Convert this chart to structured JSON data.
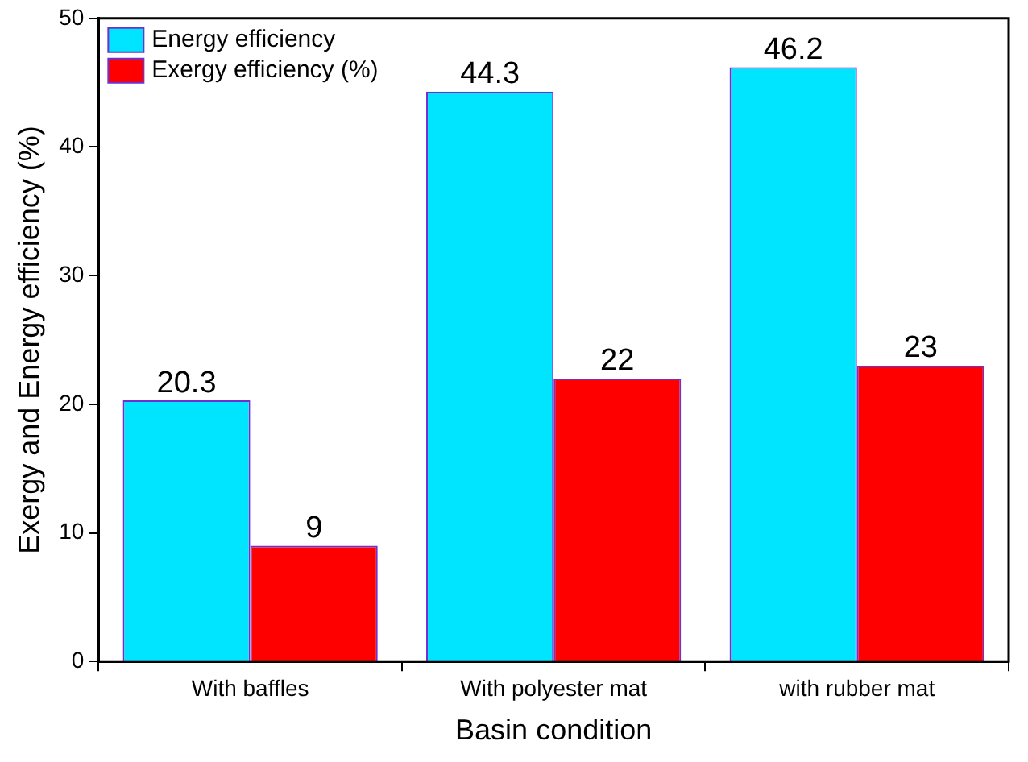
{
  "chart_data": {
    "type": "bar",
    "xlabel": "Basin condition",
    "ylabel": "Exergy and Energy efficiency (%)",
    "categories": [
      "With baffles",
      "With polyester mat",
      "with rubber mat"
    ],
    "series": [
      {
        "name": "Energy efficiency",
        "color": "#00e5ff",
        "values": [
          20.3,
          44.3,
          46.2
        ]
      },
      {
        "name": "Exergy efficiency (%)",
        "color": "#ff0000",
        "values": [
          9,
          22,
          23
        ]
      }
    ],
    "ylim": [
      0,
      50
    ],
    "yticks": [
      0,
      10,
      20,
      30,
      40,
      50
    ],
    "grid": false,
    "legend": "top left",
    "data_labels": true
  }
}
